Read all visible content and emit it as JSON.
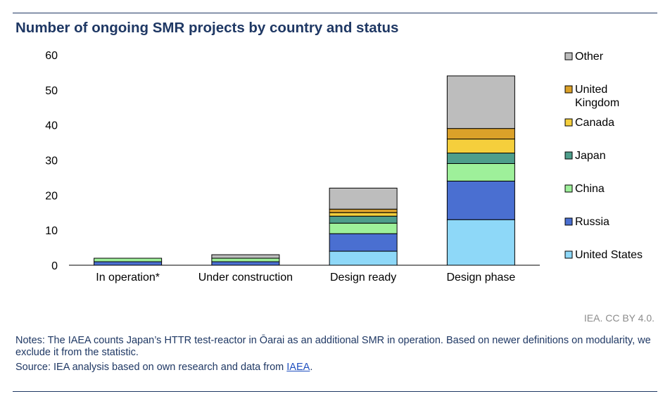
{
  "title": "Number of ongoing SMR projects by country and status",
  "credit": "IEA. CC BY 4.0.",
  "notes": "Notes: The IAEA counts Japan’s HTTR test-reactor in Ōarai as an additional SMR in operation. Based on newer definitions on modularity, we exclude it from the statistic.",
  "source_prefix": "Source: IEA analysis based on own research and data from ",
  "source_link": "IAEA",
  "source_suffix": ".",
  "colors": {
    "frame": "#1f3864",
    "United States": "#8ed8f8",
    "Russia": "#4a6fd1",
    "China": "#9ef09a",
    "Japan": "#4e9e8b",
    "Canada": "#f5cf3c",
    "United Kingdom": "#dba129",
    "Other": "#bdbdbd"
  },
  "chart_data": {
    "type": "bar",
    "stacked": true,
    "categories": [
      "In operation*",
      "Under construction",
      "Design ready",
      "Design phase"
    ],
    "series": [
      {
        "name": "United States",
        "values": [
          0,
          0,
          4,
          13
        ]
      },
      {
        "name": "Russia",
        "values": [
          1,
          1,
          5,
          11
        ]
      },
      {
        "name": "China",
        "values": [
          1,
          1,
          3,
          5
        ]
      },
      {
        "name": "Japan",
        "values": [
          0,
          0,
          2,
          3
        ]
      },
      {
        "name": "Canada",
        "values": [
          0,
          0,
          1,
          4
        ]
      },
      {
        "name": "United Kingdom",
        "values": [
          0,
          0,
          1,
          3
        ]
      },
      {
        "name": "Other",
        "values": [
          0,
          1,
          6,
          15
        ]
      }
    ],
    "ylim": [
      0,
      60
    ],
    "yticks": [
      0,
      10,
      20,
      30,
      40,
      50,
      60
    ],
    "grid": false,
    "legend_position": "right",
    "legend_order": [
      "Other",
      "United Kingdom",
      "Canada",
      "Japan",
      "China",
      "Russia",
      "United States"
    ]
  }
}
